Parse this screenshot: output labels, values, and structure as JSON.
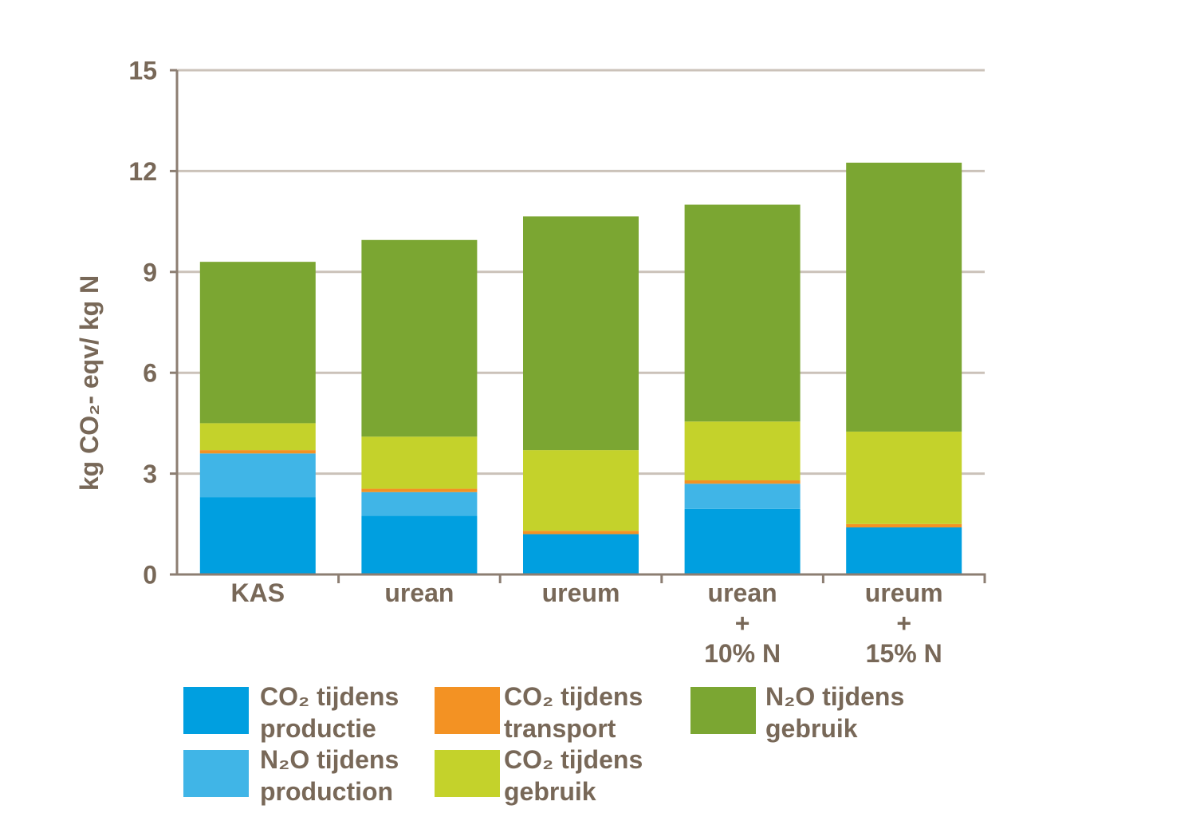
{
  "chart_data": {
    "type": "bar",
    "stacked": true,
    "title": "",
    "xlabel": "",
    "ylabel": "kg CO₂- eqv/ kg N",
    "ylim": [
      0,
      15
    ],
    "yticks": [
      0,
      3,
      6,
      9,
      12,
      15
    ],
    "grid": true,
    "legend_position": "bottom",
    "categories": [
      "KAS",
      "urean",
      "ureum",
      "urean + 10% N",
      "ureum + 15% N"
    ],
    "series": [
      {
        "name": "CO₂ tijdens productie",
        "color": "#009FE0",
        "values": [
          2.3,
          1.75,
          1.2,
          1.95,
          1.4
        ]
      },
      {
        "name": "N₂O tijdens production",
        "color": "#40B5E7",
        "values": [
          1.3,
          0.7,
          0,
          0.75,
          0
        ]
      },
      {
        "name": "CO₂ tijdens transport",
        "color": "#F39223",
        "values": [
          0.1,
          0.1,
          0.1,
          0.1,
          0.1
        ]
      },
      {
        "name": "CO₂ tijdens gebruik",
        "color": "#C4D22B",
        "values": [
          0.8,
          1.55,
          2.4,
          1.75,
          2.75
        ]
      },
      {
        "name": "N₂O tijdens gebruik",
        "color": "#7BA632",
        "values": [
          4.8,
          5.85,
          6.95,
          6.45,
          8.0
        ]
      }
    ]
  },
  "colors": {
    "text": "#786858",
    "axis": "#8C7E72",
    "grid": "#CBC2B9",
    "background": "#FFFFFF"
  }
}
